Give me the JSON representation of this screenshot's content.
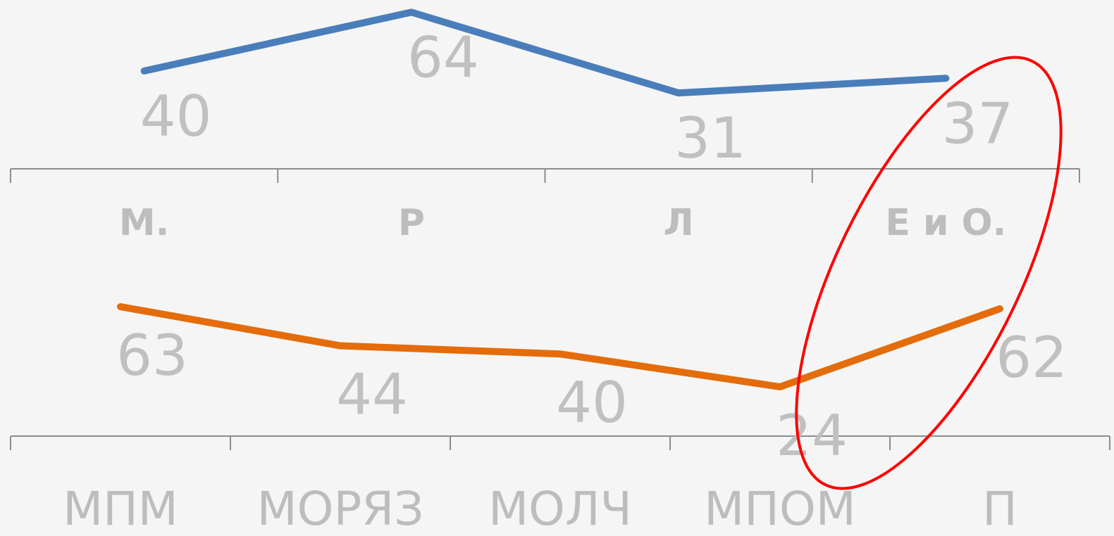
{
  "chart_data": [
    {
      "type": "line",
      "categories": [
        "М.",
        "Р",
        "Л",
        "Е и О."
      ],
      "values": [
        40,
        64,
        31,
        37
      ],
      "color": "#4a7ebb",
      "ylim": [
        0,
        69
      ]
    },
    {
      "type": "line",
      "categories": [
        "МПМ",
        "МОРЯЗ",
        "МОЛЧ",
        "МПОМ",
        "П"
      ],
      "values": [
        63,
        44,
        40,
        24,
        62
      ],
      "color": "#e46c0a",
      "ylim": [
        0,
        100
      ]
    }
  ]
}
